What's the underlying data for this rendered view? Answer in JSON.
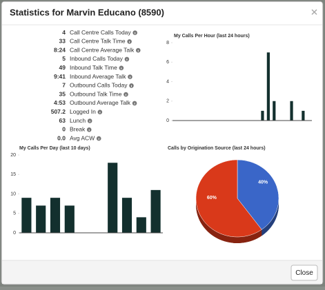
{
  "header": {
    "title": "Statistics for Marvin Educano (8590)"
  },
  "stats": [
    {
      "value": "4",
      "label": "Call Centre Calls Today"
    },
    {
      "value": "33",
      "label": "Call Centre Talk Time"
    },
    {
      "value": "8:24",
      "label": "Call Centre Average Talk"
    },
    {
      "value": "5",
      "label": "Inbound Calls Today"
    },
    {
      "value": "49",
      "label": "Inbound Talk Time"
    },
    {
      "value": "9:41",
      "label": "Inbound Average Talk"
    },
    {
      "value": "7",
      "label": "Outbound Calls Today"
    },
    {
      "value": "35",
      "label": "Outbound Talk Time"
    },
    {
      "value": "4:53",
      "label": "Outbound Average Talk"
    },
    {
      "value": "507.2",
      "label": "Logged In"
    },
    {
      "value": "63",
      "label": "Lunch"
    },
    {
      "value": "0",
      "label": "Break"
    },
    {
      "value": "0.0",
      "label": "Avg ACW"
    }
  ],
  "chart_data": [
    {
      "type": "bar",
      "title": "My Calls Per Hour (last 24 hours)",
      "categories": [
        null,
        null,
        null,
        null,
        null,
        null,
        null,
        null,
        null,
        null,
        null,
        null,
        null,
        null,
        null,
        null,
        null,
        null,
        null,
        null,
        null,
        null,
        null,
        null
      ],
      "values": [
        0,
        0,
        0,
        0,
        0,
        0,
        0,
        0,
        0,
        0,
        0,
        0,
        0,
        0,
        0,
        1,
        7,
        2,
        0,
        0,
        2,
        0,
        1,
        0
      ],
      "color": "#13302e",
      "ylim": [
        0,
        8
      ],
      "yticks": [
        0,
        2,
        4,
        6,
        8
      ],
      "grid": false
    },
    {
      "type": "bar",
      "title": "My Calls Per Day (last 10 days)",
      "categories": [
        null,
        null,
        null,
        null,
        null,
        null,
        null,
        null,
        null,
        null
      ],
      "values": [
        9,
        7,
        9,
        7,
        0,
        0,
        18,
        9,
        4,
        11
      ],
      "color": "#13302e",
      "ylim": [
        0,
        20
      ],
      "yticks": [
        0,
        5,
        10,
        15,
        20
      ],
      "grid": false
    },
    {
      "type": "pie",
      "title": "Calls by Origination Source (last 24 hours)",
      "values": [
        40,
        60
      ],
      "value_labels": [
        "40%",
        "60%"
      ],
      "colors": [
        "#3a66c8",
        "#d9391a"
      ]
    }
  ],
  "footer": {
    "close": "Close"
  }
}
